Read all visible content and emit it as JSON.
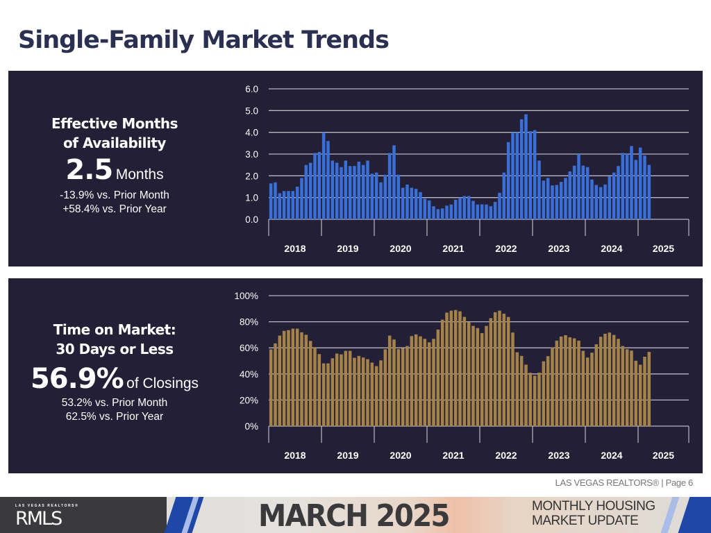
{
  "page_title": "Single-Family Market Trends",
  "colors": {
    "panel": "#231f36",
    "blue_bar": "#3b6fd8",
    "gold_bar": "#a5824a",
    "title": "#2b3052"
  },
  "kpi_months": {
    "heading_line1": "Effective Months",
    "heading_line2": "of Availability",
    "value": "2.5",
    "unit": "Months",
    "vs_month": "-13.9% vs. Prior Month",
    "vs_year": "+58.4% vs. Prior Year"
  },
  "kpi_dom": {
    "heading_line1": "Time on Market:",
    "heading_line2": "30 Days or Less",
    "value": "56.9%",
    "unit": "of Closings",
    "vs_month": "53.2% vs. Prior Month",
    "vs_year": "62.5% vs. Prior Year"
  },
  "chart_data": [
    {
      "type": "bar",
      "title": "Effective Months of Availability",
      "x_start": "2018-01",
      "x_end": "2025-03",
      "year_labels": [
        "2018",
        "2019",
        "2020",
        "2021",
        "2022",
        "2023",
        "2024",
        "2025"
      ],
      "ytick_labels": [
        "0.0",
        "1.0",
        "2.0",
        "3.0",
        "4.0",
        "5.0",
        "6.0"
      ],
      "ylim": [
        0,
        6
      ],
      "grid": true,
      "values": [
        1.65,
        1.7,
        1.2,
        1.3,
        1.3,
        1.3,
        1.5,
        1.9,
        2.5,
        2.6,
        3.05,
        3.1,
        4.0,
        3.6,
        2.7,
        2.6,
        2.4,
        2.7,
        2.45,
        2.45,
        2.65,
        2.5,
        2.7,
        2.1,
        2.15,
        1.7,
        2.05,
        3.05,
        3.4,
        2.05,
        1.45,
        1.6,
        1.45,
        1.4,
        1.25,
        0.95,
        0.87,
        0.6,
        0.47,
        0.5,
        0.63,
        0.68,
        0.9,
        1.0,
        1.07,
        1.07,
        0.85,
        0.68,
        0.69,
        0.68,
        0.6,
        0.8,
        1.22,
        2.15,
        3.55,
        4.0,
        4.0,
        4.6,
        4.83,
        4.05,
        4.1,
        2.7,
        1.78,
        1.9,
        1.56,
        1.58,
        1.72,
        1.9,
        2.2,
        2.47,
        3.0,
        2.47,
        2.4,
        1.83,
        1.58,
        1.48,
        1.6,
        1.97,
        2.15,
        2.45,
        3.05,
        3.0,
        3.37,
        2.73,
        3.3,
        2.93,
        2.5
      ]
    },
    {
      "type": "bar",
      "title": "Time on Market: 30 Days or Less (% of Closings)",
      "x_start": "2018-01",
      "x_end": "2025-03",
      "year_labels": [
        "2018",
        "2019",
        "2020",
        "2021",
        "2022",
        "2023",
        "2024",
        "2025"
      ],
      "ytick_labels": [
        "0%",
        "20%",
        "40%",
        "60%",
        "80%",
        "100%"
      ],
      "ylim": [
        0,
        100
      ],
      "grid": true,
      "values": [
        58.8,
        63.4,
        69.4,
        73,
        73.6,
        74.7,
        74.7,
        71.9,
        70,
        65.3,
        60,
        55.2,
        48.1,
        48.1,
        52,
        55.6,
        55,
        57.7,
        57.7,
        52.4,
        53.8,
        52.6,
        51.3,
        48.7,
        46,
        50.4,
        58.9,
        69.4,
        66.4,
        59,
        59.6,
        61.4,
        69,
        70.3,
        68.8,
        66.9,
        64.2,
        66.9,
        74,
        81.6,
        87,
        88.5,
        89,
        88,
        83.7,
        79.8,
        76.8,
        75.2,
        71.3,
        76.8,
        82.8,
        87.3,
        88.5,
        86.2,
        83.7,
        71.7,
        56.6,
        53.8,
        47.1,
        40.9,
        38.6,
        41,
        49.7,
        53.6,
        60.2,
        65.5,
        68.7,
        69.7,
        68.1,
        67.3,
        65.5,
        57.7,
        52.6,
        56.3,
        62.7,
        68.5,
        70.8,
        71.7,
        69.9,
        66.9,
        61.4,
        58.9,
        57.9,
        50.1,
        47.1,
        53.2,
        56.9
      ]
    }
  ],
  "footer": {
    "note": "LAS VEGAS REALTORS® | Page 6",
    "logo_small": "LAS VEGAS REALTORS®",
    "logo_big": "RMLS",
    "month": "MARCH 2025",
    "subtitle_line1": "MONTHLY HOUSING",
    "subtitle_line2": "MARKET UPDATE"
  }
}
